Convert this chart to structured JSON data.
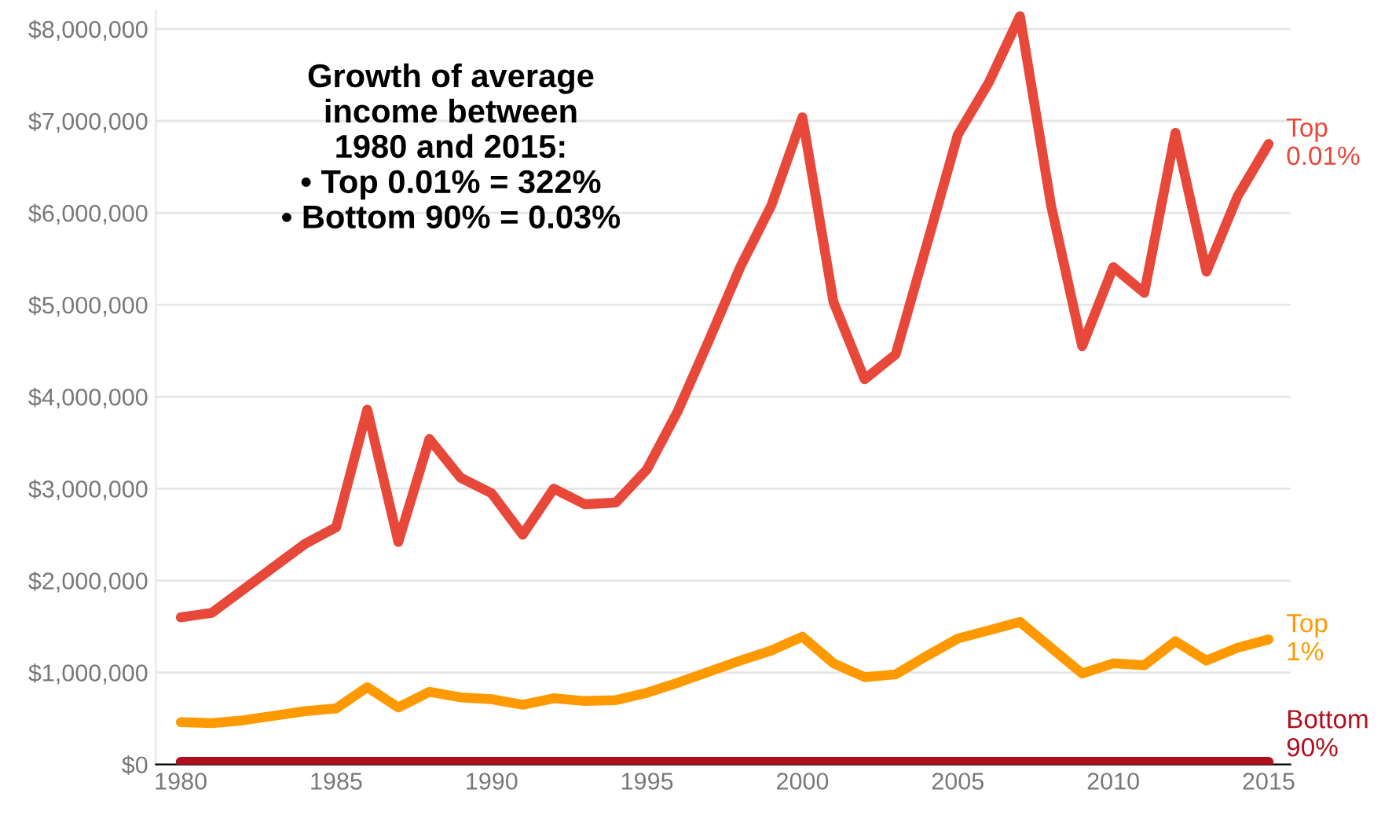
{
  "chart_data": {
    "type": "line",
    "x": [
      1980,
      1981,
      1982,
      1983,
      1984,
      1985,
      1986,
      1987,
      1988,
      1989,
      1990,
      1991,
      1992,
      1993,
      1994,
      1995,
      1996,
      1997,
      1998,
      1999,
      2000,
      2001,
      2002,
      2003,
      2004,
      2005,
      2006,
      2007,
      2008,
      2009,
      2010,
      2011,
      2012,
      2013,
      2014,
      2015
    ],
    "series": [
      {
        "name": "Top 0.01%",
        "color": "#e8483a",
        "values": [
          1600000,
          1650000,
          1900000,
          2150000,
          2400000,
          2580000,
          3860000,
          2420000,
          3540000,
          3120000,
          2950000,
          2500000,
          3000000,
          2830000,
          2850000,
          3210000,
          3850000,
          4620000,
          5410000,
          6080000,
          7040000,
          5030000,
          4190000,
          4460000,
          5650000,
          6850000,
          7420000,
          8140000,
          6080000,
          4550000,
          5410000,
          5130000,
          6870000,
          5360000,
          6180000,
          6750000
        ]
      },
      {
        "name": "Top 1%",
        "color": "#ff9900",
        "values": [
          460000,
          450000,
          480000,
          530000,
          580000,
          610000,
          840000,
          620000,
          790000,
          730000,
          710000,
          650000,
          720000,
          690000,
          700000,
          780000,
          890000,
          1010000,
          1130000,
          1240000,
          1390000,
          1100000,
          950000,
          980000,
          1180000,
          1370000,
          1460000,
          1550000,
          1270000,
          990000,
          1100000,
          1080000,
          1340000,
          1130000,
          1270000,
          1360000
        ]
      },
      {
        "name": "Bottom 90%",
        "color": "#b0101e",
        "values": [
          30000,
          30000,
          30000,
          30000,
          30000,
          30000,
          30000,
          30000,
          30000,
          30000,
          30000,
          30000,
          30000,
          30000,
          30000,
          30000,
          30000,
          30000,
          30000,
          30000,
          30000,
          30000,
          30000,
          30000,
          30000,
          30000,
          30000,
          30000,
          30000,
          30000,
          30000,
          30000,
          30000,
          30000,
          30000,
          30000
        ]
      }
    ],
    "xlim": [
      1979.2,
      2015.7
    ],
    "xticks": [
      1980,
      1985,
      1990,
      1995,
      2000,
      2005,
      2010,
      2015
    ],
    "ylim": [
      0,
      8200000
    ],
    "yticks": [
      {
        "value": 0,
        "label": "$0"
      },
      {
        "value": 1000000,
        "label": "$1,000,000"
      },
      {
        "value": 2000000,
        "label": "$2,000,000"
      },
      {
        "value": 3000000,
        "label": "$3,000,000"
      },
      {
        "value": 4000000,
        "label": "$4,000,000"
      },
      {
        "value": 5000000,
        "label": "$5,000,000"
      },
      {
        "value": 6000000,
        "label": "$6,000,000"
      },
      {
        "value": 7000000,
        "label": "$7,000,000"
      },
      {
        "value": 8000000,
        "label": "$8,000,000"
      }
    ],
    "annotations": [
      "Growth of average\nincome between\n1980 and 2015:\n• Top 0.01% = 322%\n• Bottom 90% = 0.03%"
    ],
    "grid": "y",
    "legend": false,
    "marker": "none",
    "line_style": "solid"
  }
}
